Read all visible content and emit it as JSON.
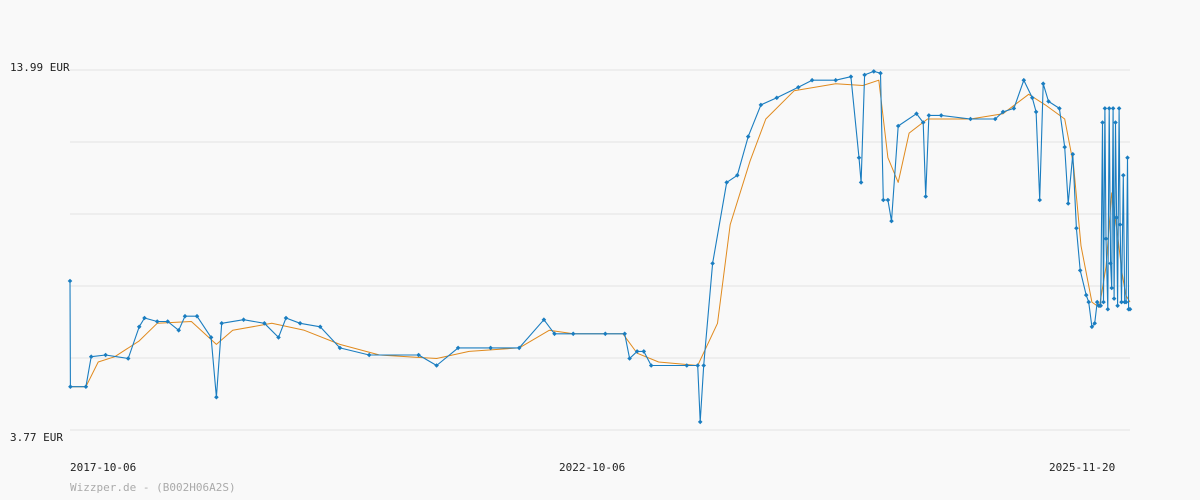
{
  "chart_data": {
    "type": "line",
    "title": "",
    "xlabel": "",
    "ylabel": "",
    "ylim": [
      3.77,
      13.99
    ],
    "xlim": [
      "2017-10-06",
      "2025-12-27"
    ],
    "x_tick_labels": [
      "2017-10-06",
      "2022-10-06",
      "2025-11-20"
    ],
    "y_tick_labels": [
      "13.99 EUR",
      "3.77 EUR"
    ],
    "grid": true,
    "credit": "Wizzper.de - (B002H06A2S)",
    "colors": {
      "price": "#1a7dc0",
      "average": "#e08a1e",
      "grid": "#e2e2e2"
    },
    "series": [
      {
        "role": "price",
        "points": [
          [
            "2017-10-06",
            8.0
          ],
          [
            "2017-10-07",
            5.0
          ],
          [
            "2017-11-20",
            5.0
          ],
          [
            "2017-12-05",
            5.85
          ],
          [
            "2018-01-15",
            5.9
          ],
          [
            "2018-03-20",
            5.8
          ],
          [
            "2018-04-20",
            6.7
          ],
          [
            "2018-05-05",
            6.95
          ],
          [
            "2018-06-10",
            6.85
          ],
          [
            "2018-07-10",
            6.85
          ],
          [
            "2018-08-10",
            6.6
          ],
          [
            "2018-08-28",
            7.0
          ],
          [
            "2018-10-01",
            7.0
          ],
          [
            "2018-11-10",
            6.4
          ],
          [
            "2018-11-25",
            4.7
          ],
          [
            "2018-12-10",
            6.8
          ],
          [
            "2019-02-10",
            6.9
          ],
          [
            "2019-04-10",
            6.8
          ],
          [
            "2019-05-20",
            6.4
          ],
          [
            "2019-06-10",
            6.95
          ],
          [
            "2019-07-20",
            6.8
          ],
          [
            "2019-09-15",
            6.7
          ],
          [
            "2019-11-10",
            6.1
          ],
          [
            "2020-02-01",
            5.9
          ],
          [
            "2020-06-20",
            5.9
          ],
          [
            "2020-08-10",
            5.6
          ],
          [
            "2020-10-10",
            6.1
          ],
          [
            "2021-01-10",
            6.1
          ],
          [
            "2021-04-01",
            6.1
          ],
          [
            "2021-06-10",
            6.9
          ],
          [
            "2021-07-10",
            6.5
          ],
          [
            "2021-09-01",
            6.5
          ],
          [
            "2021-12-01",
            6.5
          ],
          [
            "2022-01-25",
            6.5
          ],
          [
            "2022-02-08",
            5.8
          ],
          [
            "2022-03-01",
            6.0
          ],
          [
            "2022-03-20",
            6.0
          ],
          [
            "2022-04-10",
            5.6
          ],
          [
            "2022-07-20",
            5.6
          ],
          [
            "2022-08-20",
            5.6
          ],
          [
            "2022-08-27",
            4.0
          ],
          [
            "2022-09-06",
            5.6
          ],
          [
            "2022-10-01",
            8.5
          ],
          [
            "2022-11-10",
            10.8
          ],
          [
            "2022-12-10",
            11.0
          ],
          [
            "2023-01-10",
            12.1
          ],
          [
            "2023-02-15",
            13.0
          ],
          [
            "2023-04-01",
            13.2
          ],
          [
            "2023-06-01",
            13.5
          ],
          [
            "2023-07-10",
            13.7
          ],
          [
            "2023-09-15",
            13.7
          ],
          [
            "2023-10-28",
            13.8
          ],
          [
            "2023-11-20",
            11.5
          ],
          [
            "2023-11-26",
            10.8
          ],
          [
            "2023-12-06",
            13.85
          ],
          [
            "2024-01-01",
            13.95
          ],
          [
            "2024-01-20",
            13.9
          ],
          [
            "2024-01-28",
            10.3
          ],
          [
            "2024-02-10",
            10.3
          ],
          [
            "2024-02-20",
            9.7
          ],
          [
            "2024-03-10",
            12.4
          ],
          [
            "2024-05-01",
            12.75
          ],
          [
            "2024-05-20",
            12.5
          ],
          [
            "2024-05-27",
            10.4
          ],
          [
            "2024-06-05",
            12.7
          ],
          [
            "2024-07-10",
            12.7
          ],
          [
            "2024-10-01",
            12.6
          ],
          [
            "2024-12-10",
            12.6
          ],
          [
            "2025-01-01",
            12.8
          ],
          [
            "2025-02-01",
            12.9
          ],
          [
            "2025-03-01",
            13.7
          ],
          [
            "2025-03-25",
            13.2
          ],
          [
            "2025-04-05",
            12.8
          ],
          [
            "2025-04-15",
            10.3
          ],
          [
            "2025-04-25",
            13.6
          ],
          [
            "2025-05-10",
            13.1
          ],
          [
            "2025-06-10",
            12.9
          ],
          [
            "2025-06-25",
            11.8
          ],
          [
            "2025-07-05",
            10.2
          ],
          [
            "2025-07-18",
            11.6
          ],
          [
            "2025-07-28",
            9.5
          ],
          [
            "2025-08-08",
            8.3
          ],
          [
            "2025-08-25",
            7.6
          ],
          [
            "2025-09-01",
            7.4
          ],
          [
            "2025-09-10",
            6.7
          ],
          [
            "2025-09-18",
            6.8
          ],
          [
            "2025-09-25",
            7.4
          ],
          [
            "2025-09-30",
            7.3
          ],
          [
            "2025-10-05",
            7.3
          ],
          [
            "2025-10-10",
            12.5
          ],
          [
            "2025-10-13",
            7.4
          ],
          [
            "2025-10-17",
            12.9
          ],
          [
            "2025-10-20",
            9.2
          ],
          [
            "2025-10-25",
            7.2
          ],
          [
            "2025-10-29",
            12.9
          ],
          [
            "2025-11-02",
            8.5
          ],
          [
            "2025-11-05",
            7.8
          ],
          [
            "2025-11-09",
            12.9
          ],
          [
            "2025-11-12",
            7.5
          ],
          [
            "2025-11-16",
            12.5
          ],
          [
            "2025-11-19",
            9.8
          ],
          [
            "2025-11-22",
            7.3
          ],
          [
            "2025-11-26",
            12.9
          ],
          [
            "2025-11-29",
            9.6
          ],
          [
            "2025-12-03",
            7.4
          ],
          [
            "2025-12-08",
            11.0
          ],
          [
            "2025-12-12",
            7.4
          ],
          [
            "2025-12-16",
            7.4
          ],
          [
            "2025-12-20",
            11.5
          ],
          [
            "2025-12-23",
            7.2
          ],
          [
            "2025-12-27",
            7.2
          ]
        ]
      },
      {
        "role": "average",
        "points": [
          [
            "2017-10-06",
            5.0
          ],
          [
            "2017-11-20",
            5.0
          ],
          [
            "2017-12-25",
            5.7
          ],
          [
            "2018-02-10",
            5.85
          ],
          [
            "2018-04-20",
            6.3
          ],
          [
            "2018-06-10",
            6.8
          ],
          [
            "2018-09-15",
            6.85
          ],
          [
            "2018-11-25",
            6.2
          ],
          [
            "2019-01-10",
            6.6
          ],
          [
            "2019-05-01",
            6.8
          ],
          [
            "2019-08-01",
            6.6
          ],
          [
            "2019-11-10",
            6.2
          ],
          [
            "2020-03-01",
            5.9
          ],
          [
            "2020-08-10",
            5.8
          ],
          [
            "2020-11-10",
            6.0
          ],
          [
            "2021-04-01",
            6.1
          ],
          [
            "2021-06-25",
            6.6
          ],
          [
            "2021-09-01",
            6.5
          ],
          [
            "2022-01-20",
            6.5
          ],
          [
            "2022-03-01",
            5.95
          ],
          [
            "2022-05-01",
            5.7
          ],
          [
            "2022-08-20",
            5.6
          ],
          [
            "2022-10-15",
            6.8
          ],
          [
            "2022-11-20",
            9.6
          ],
          [
            "2023-01-15",
            11.4
          ],
          [
            "2023-03-01",
            12.6
          ],
          [
            "2023-05-20",
            13.4
          ],
          [
            "2023-09-15",
            13.6
          ],
          [
            "2023-12-01",
            13.55
          ],
          [
            "2024-01-15",
            13.7
          ],
          [
            "2024-02-10",
            11.5
          ],
          [
            "2024-03-10",
            10.8
          ],
          [
            "2024-04-10",
            12.2
          ],
          [
            "2024-06-01",
            12.6
          ],
          [
            "2024-10-01",
            12.6
          ],
          [
            "2025-01-01",
            12.75
          ],
          [
            "2025-03-15",
            13.3
          ],
          [
            "2025-05-01",
            13.0
          ],
          [
            "2025-06-25",
            12.6
          ],
          [
            "2025-07-20",
            11.3
          ],
          [
            "2025-08-10",
            9.0
          ],
          [
            "2025-09-10",
            7.4
          ],
          [
            "2025-10-01",
            7.25
          ],
          [
            "2025-10-20",
            8.4
          ],
          [
            "2025-11-05",
            10.5
          ],
          [
            "2025-11-22",
            9.3
          ],
          [
            "2025-12-05",
            8.2
          ],
          [
            "2025-12-15",
            7.6
          ],
          [
            "2025-12-27",
            7.4
          ]
        ]
      }
    ]
  }
}
